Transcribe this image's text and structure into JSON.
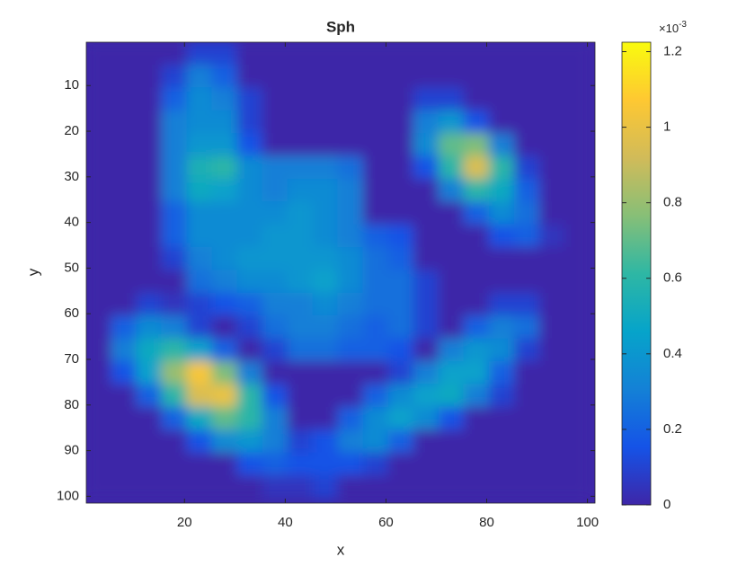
{
  "chart_data": {
    "type": "heatmap",
    "title": "Sph",
    "xlabel": "x",
    "ylabel": "y",
    "x": [
      3,
      8,
      13,
      18,
      23,
      28,
      33,
      38,
      43,
      48,
      53,
      58,
      63,
      68,
      73,
      78,
      83,
      88,
      93,
      98
    ],
    "y": [
      3,
      8,
      13,
      18,
      23,
      28,
      33,
      38,
      43,
      48,
      53,
      58,
      63,
      68,
      73,
      78,
      83,
      88,
      93,
      98
    ],
    "z": [
      [
        0,
        0,
        0,
        0,
        0.1,
        0.1,
        0,
        0,
        0,
        0,
        0,
        0,
        0,
        0,
        0,
        0,
        0,
        0,
        0,
        0
      ],
      [
        0,
        0,
        0,
        0.1,
        0.3,
        0.2,
        0,
        0,
        0,
        0,
        0,
        0,
        0,
        0,
        0,
        0,
        0,
        0,
        0,
        0
      ],
      [
        0,
        0,
        0,
        0.2,
        0.35,
        0.3,
        0.1,
        0,
        0,
        0,
        0,
        0,
        0,
        0.1,
        0.1,
        0,
        0,
        0,
        0,
        0
      ],
      [
        0,
        0,
        0,
        0.3,
        0.35,
        0.35,
        0.1,
        0,
        0,
        0,
        0,
        0,
        0,
        0.3,
        0.4,
        0.15,
        0,
        0,
        0,
        0
      ],
      [
        0,
        0,
        0,
        0.3,
        0.4,
        0.4,
        0.15,
        0,
        0,
        0,
        0,
        0,
        0,
        0.35,
        0.7,
        0.75,
        0.3,
        0,
        0,
        0
      ],
      [
        0,
        0,
        0,
        0.3,
        0.55,
        0.6,
        0.35,
        0.3,
        0.3,
        0.3,
        0.25,
        0,
        0,
        0.15,
        0.6,
        0.95,
        0.6,
        0.1,
        0,
        0
      ],
      [
        0,
        0,
        0,
        0.3,
        0.5,
        0.45,
        0.35,
        0.3,
        0.35,
        0.35,
        0.3,
        0,
        0,
        0,
        0.3,
        0.6,
        0.5,
        0.2,
        0,
        0
      ],
      [
        0,
        0,
        0,
        0.2,
        0.35,
        0.35,
        0.35,
        0.35,
        0.4,
        0.35,
        0.3,
        0,
        0,
        0,
        0,
        0.2,
        0.35,
        0.25,
        0,
        0
      ],
      [
        0,
        0,
        0,
        0.2,
        0.35,
        0.35,
        0.35,
        0.4,
        0.4,
        0.35,
        0.3,
        0.2,
        0.15,
        0,
        0,
        0,
        0.15,
        0.2,
        0.05,
        0
      ],
      [
        0,
        0,
        0,
        0.1,
        0.3,
        0.35,
        0.4,
        0.4,
        0.4,
        0.4,
        0.35,
        0.25,
        0.2,
        0,
        0,
        0,
        0,
        0,
        0,
        0
      ],
      [
        0,
        0,
        0,
        0,
        0.25,
        0.3,
        0.35,
        0.35,
        0.4,
        0.45,
        0.35,
        0.25,
        0.25,
        0.1,
        0,
        0,
        0,
        0,
        0,
        0
      ],
      [
        0,
        0,
        0.1,
        0.05,
        0.1,
        0.15,
        0.2,
        0.3,
        0.3,
        0.35,
        0.3,
        0.25,
        0.25,
        0.1,
        0,
        0,
        0.1,
        0.1,
        0,
        0
      ],
      [
        0,
        0.2,
        0.35,
        0.3,
        0.1,
        0,
        0.1,
        0.25,
        0.3,
        0.3,
        0.25,
        0.2,
        0.25,
        0.1,
        0,
        0.2,
        0.3,
        0.25,
        0,
        0
      ],
      [
        0,
        0.3,
        0.5,
        0.6,
        0.45,
        0.2,
        0,
        0.1,
        0.25,
        0.25,
        0.2,
        0.2,
        0.15,
        0,
        0.3,
        0.4,
        0.35,
        0.1,
        0,
        0
      ],
      [
        0,
        0.15,
        0.45,
        0.8,
        1.05,
        0.75,
        0.3,
        0,
        0,
        0,
        0,
        0,
        0.1,
        0.3,
        0.45,
        0.45,
        0.2,
        0,
        0,
        0
      ],
      [
        0,
        0,
        0.2,
        0.6,
        0.95,
        1.0,
        0.6,
        0.15,
        0,
        0,
        0,
        0.2,
        0.35,
        0.45,
        0.5,
        0.3,
        0.1,
        0,
        0,
        0
      ],
      [
        0,
        0,
        0,
        0.2,
        0.5,
        0.7,
        0.6,
        0.3,
        0,
        0,
        0.2,
        0.35,
        0.45,
        0.35,
        0.15,
        0,
        0,
        0,
        0,
        0
      ],
      [
        0,
        0,
        0,
        0,
        0.15,
        0.35,
        0.4,
        0.3,
        0.1,
        0.15,
        0.3,
        0.35,
        0.2,
        0,
        0,
        0,
        0,
        0,
        0,
        0
      ],
      [
        0,
        0,
        0,
        0,
        0,
        0,
        0.15,
        0.2,
        0.15,
        0.15,
        0.15,
        0.1,
        0,
        0,
        0,
        0,
        0,
        0,
        0,
        0
      ],
      [
        0,
        0,
        0,
        0,
        0,
        0,
        0,
        0.05,
        0.05,
        0.1,
        0,
        0,
        0,
        0,
        0,
        0,
        0,
        0,
        0,
        0
      ]
    ],
    "xlim": [
      0.5,
      101.5
    ],
    "ylim": [
      0.5,
      101.5
    ],
    "y_reversed": true,
    "xticks": [
      20,
      40,
      60,
      80,
      100
    ],
    "yticks": [
      10,
      20,
      30,
      40,
      50,
      60,
      70,
      80,
      90,
      100
    ],
    "clim": [
      0,
      1.225
    ],
    "cticks": [
      0,
      0.2,
      0.4,
      0.6,
      0.8,
      1,
      1.2
    ],
    "colorbar_multiplier": "×10",
    "colorbar_exponent": "-3",
    "colormap": "parula"
  }
}
